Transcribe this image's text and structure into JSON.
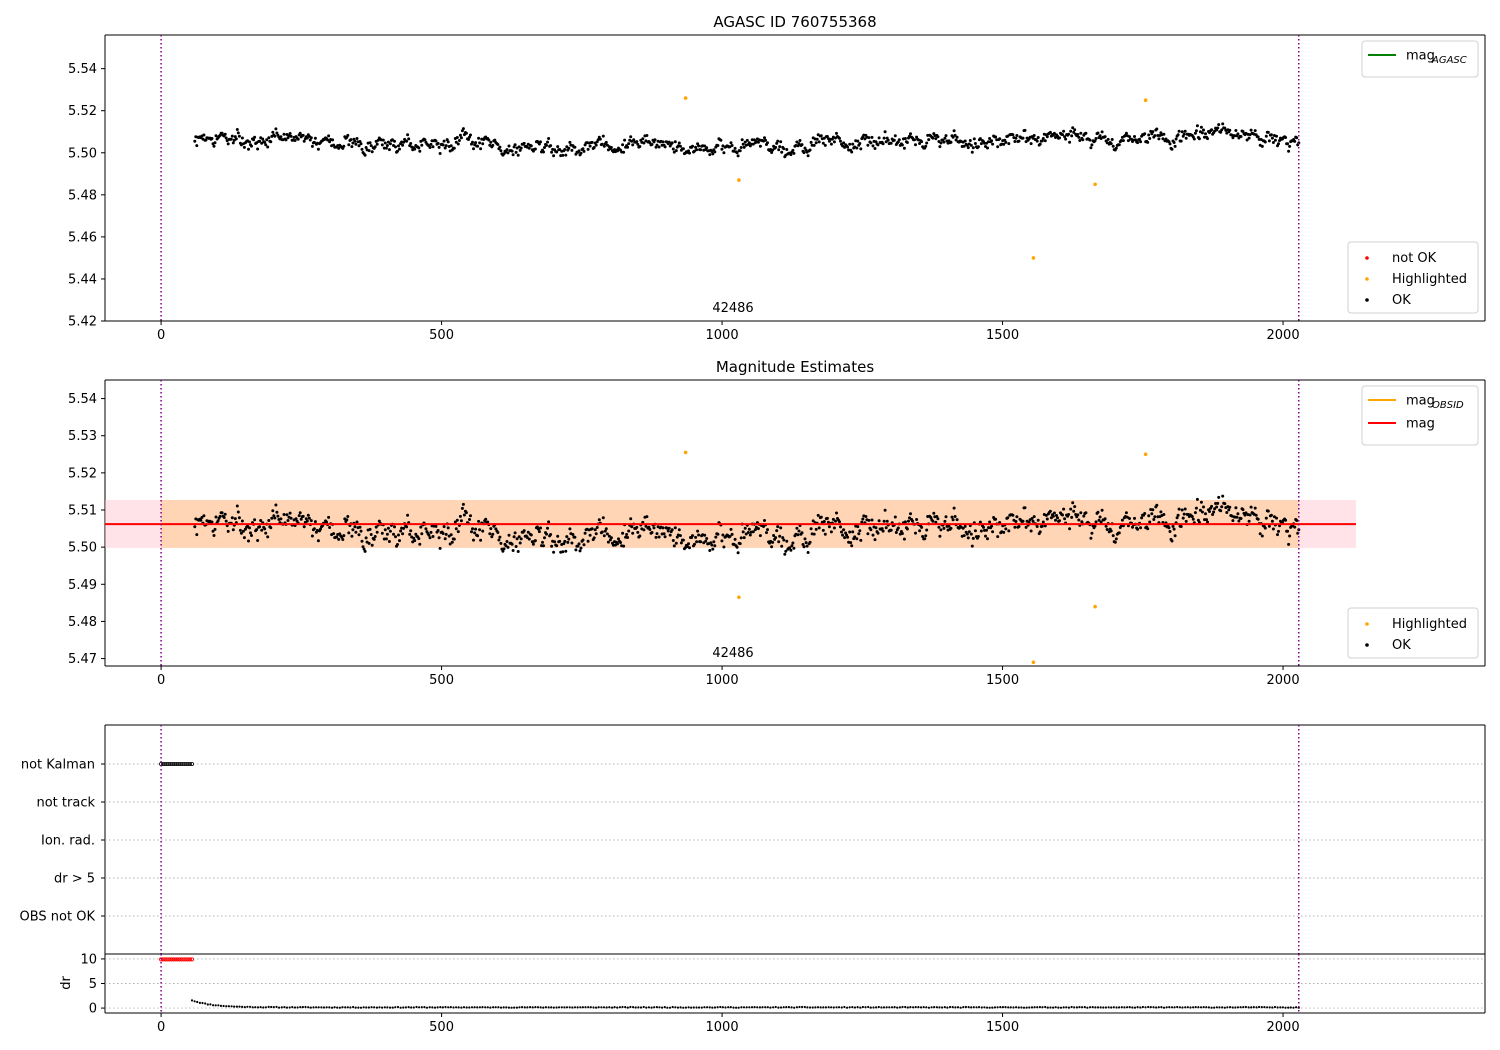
{
  "chart_data": [
    {
      "type": "scatter",
      "title": "AGASC ID 760755368",
      "xlim": [
        -100,
        2360
      ],
      "ylim": [
        5.42,
        5.556
      ],
      "xticks": [
        0,
        500,
        1000,
        1500,
        2000
      ],
      "yticks": [
        5.42,
        5.44,
        5.46,
        5.48,
        5.5,
        5.52,
        5.54
      ],
      "ytick_decimals": 2,
      "obsid_bounds": [
        0,
        2028
      ],
      "obsid_label": "42486",
      "series_params": {
        "n": 1090,
        "x_start": 60,
        "x_end": 2028,
        "center": 5.5055,
        "amplitude": 0.007,
        "seed": 7
      },
      "highlighted": [
        [
          935,
          5.526
        ],
        [
          1030,
          5.487
        ],
        [
          1555,
          5.45
        ],
        [
          1665,
          5.485
        ],
        [
          1755,
          5.525
        ]
      ],
      "legend_lines": [
        {
          "label": "mag",
          "sub": "AGASC",
          "color": "#008000"
        }
      ],
      "legend_points": [
        {
          "label": "not OK",
          "color": "#ff0000"
        },
        {
          "label": "Highlighted",
          "color": "#ffa500"
        },
        {
          "label": "OK",
          "color": "#000000"
        }
      ]
    },
    {
      "type": "scatter",
      "title": "Magnitude Estimates",
      "xlim": [
        -100,
        2360
      ],
      "ylim": [
        5.468,
        5.545
      ],
      "xticks": [
        0,
        500,
        1000,
        1500,
        2000
      ],
      "yticks": [
        5.47,
        5.48,
        5.49,
        5.5,
        5.51,
        5.52,
        5.53,
        5.54
      ],
      "ytick_decimals": 2,
      "obsid_bounds": [
        0,
        2028
      ],
      "obsid_label": "42486",
      "mean_mag": 5.5062,
      "band": [
        5.4998,
        5.5127
      ],
      "band_x": [
        -100,
        2130
      ],
      "orange_band_x": [
        0,
        2028
      ],
      "series_params": {
        "n": 1090,
        "x_start": 60,
        "x_end": 2028,
        "center": 5.5055,
        "amplitude": 0.007,
        "seed": 7
      },
      "highlighted": [
        [
          935,
          5.5255
        ],
        [
          1030,
          5.4865
        ],
        [
          1555,
          5.469
        ],
        [
          1665,
          5.484
        ],
        [
          1755,
          5.525
        ]
      ],
      "legend_lines": [
        {
          "label": "mag",
          "sub": "OBSID",
          "color": "#ffa500"
        },
        {
          "label": "mag",
          "sub": "",
          "color": "#ff0000"
        }
      ],
      "legend_points": [
        {
          "label": "Highlighted",
          "color": "#ffa500"
        },
        {
          "label": "OK",
          "color": "#000000"
        }
      ]
    },
    {
      "type": "flags",
      "xlim": [
        -100,
        2360
      ],
      "categories": [
        "not Kalman",
        "not track",
        "Ion. rad.",
        "dr > 5",
        "OBS not OK"
      ],
      "flag_points": {
        "category": "not Kalman",
        "x_from": 0,
        "x_to": 55,
        "count": 16
      },
      "obsid_bounds": [
        0,
        2028
      ]
    },
    {
      "type": "scatter",
      "ylabel": "dr",
      "xlim": [
        -100,
        2360
      ],
      "ylim": [
        -1,
        11
      ],
      "xticks": [
        0,
        500,
        1000,
        1500,
        2000
      ],
      "yticks": [
        0,
        5,
        10
      ],
      "ytick_decimals": 0,
      "obsid_bounds": [
        0,
        2028
      ],
      "red_points": {
        "y": 9.9,
        "x_from": 0,
        "x_to": 55,
        "count": 16
      },
      "decay": {
        "x_start": 55,
        "x_end": 2028,
        "start_value": 1.6,
        "floor": 0.15,
        "n": 420
      }
    }
  ],
  "colors": {
    "obsid_line": "#800080",
    "mean_line": "#ff0000",
    "band_fill": "#ffc0cb",
    "orange_band_fill": "#ffa500",
    "ok": "#000000",
    "highlighted": "#ffa500",
    "not_ok": "#ff0000",
    "grid": "#b0b0b0"
  }
}
